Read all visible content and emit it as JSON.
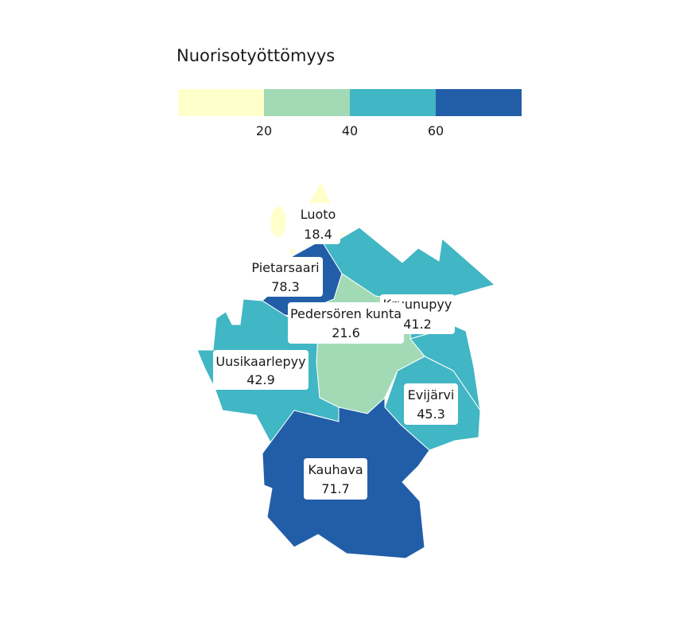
{
  "chart_data": {
    "type": "choropleth",
    "title": "Nuorisotyöttömyys",
    "legend": {
      "position": "top",
      "breaks": [
        20,
        40,
        60
      ],
      "colors": [
        "#ffffcc",
        "#a1dab4",
        "#41b6c4",
        "#225ea8"
      ]
    },
    "regions": [
      {
        "name": "Luoto",
        "value": 18.4
      },
      {
        "name": "Pietarsaari",
        "value": 78.3
      },
      {
        "name": "Kruunupyy",
        "value": 41.2
      },
      {
        "name": "Pedersören kunta",
        "value": 21.6
      },
      {
        "name": "Uusikaarlepyy",
        "value": 42.9
      },
      {
        "name": "Evijärvi",
        "value": 45.3
      },
      {
        "name": "Kauhava",
        "value": 71.7
      }
    ]
  }
}
